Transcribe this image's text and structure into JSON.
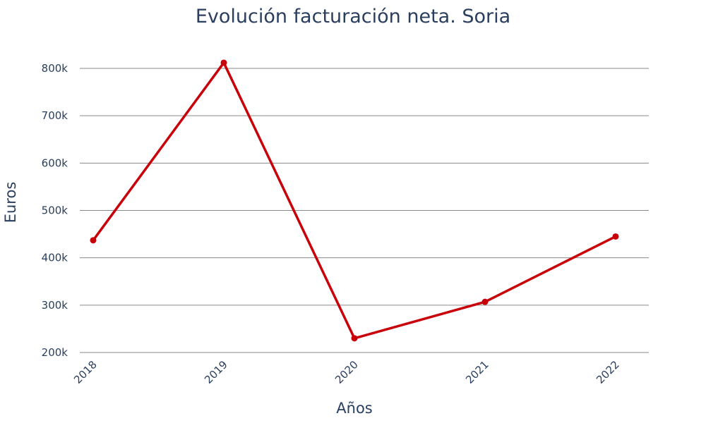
{
  "chart_data": {
    "type": "line",
    "title": "Evolución facturación neta. Soria",
    "xlabel": "Años",
    "ylabel": "Euros",
    "categories": [
      "2018",
      "2019",
      "2020",
      "2021",
      "2022"
    ],
    "series": [
      {
        "values": [
          437000,
          812000,
          230000,
          307000,
          445000
        ],
        "color": "#c8000a"
      }
    ],
    "ylim": [
      200000,
      800000
    ],
    "yticks": [
      200000,
      300000,
      400000,
      500000,
      600000,
      700000,
      800000
    ],
    "ytick_labels": [
      "200k",
      "300k",
      "400k",
      "500k",
      "600k",
      "700k",
      "800k"
    ],
    "grid": true,
    "legend": "none"
  }
}
